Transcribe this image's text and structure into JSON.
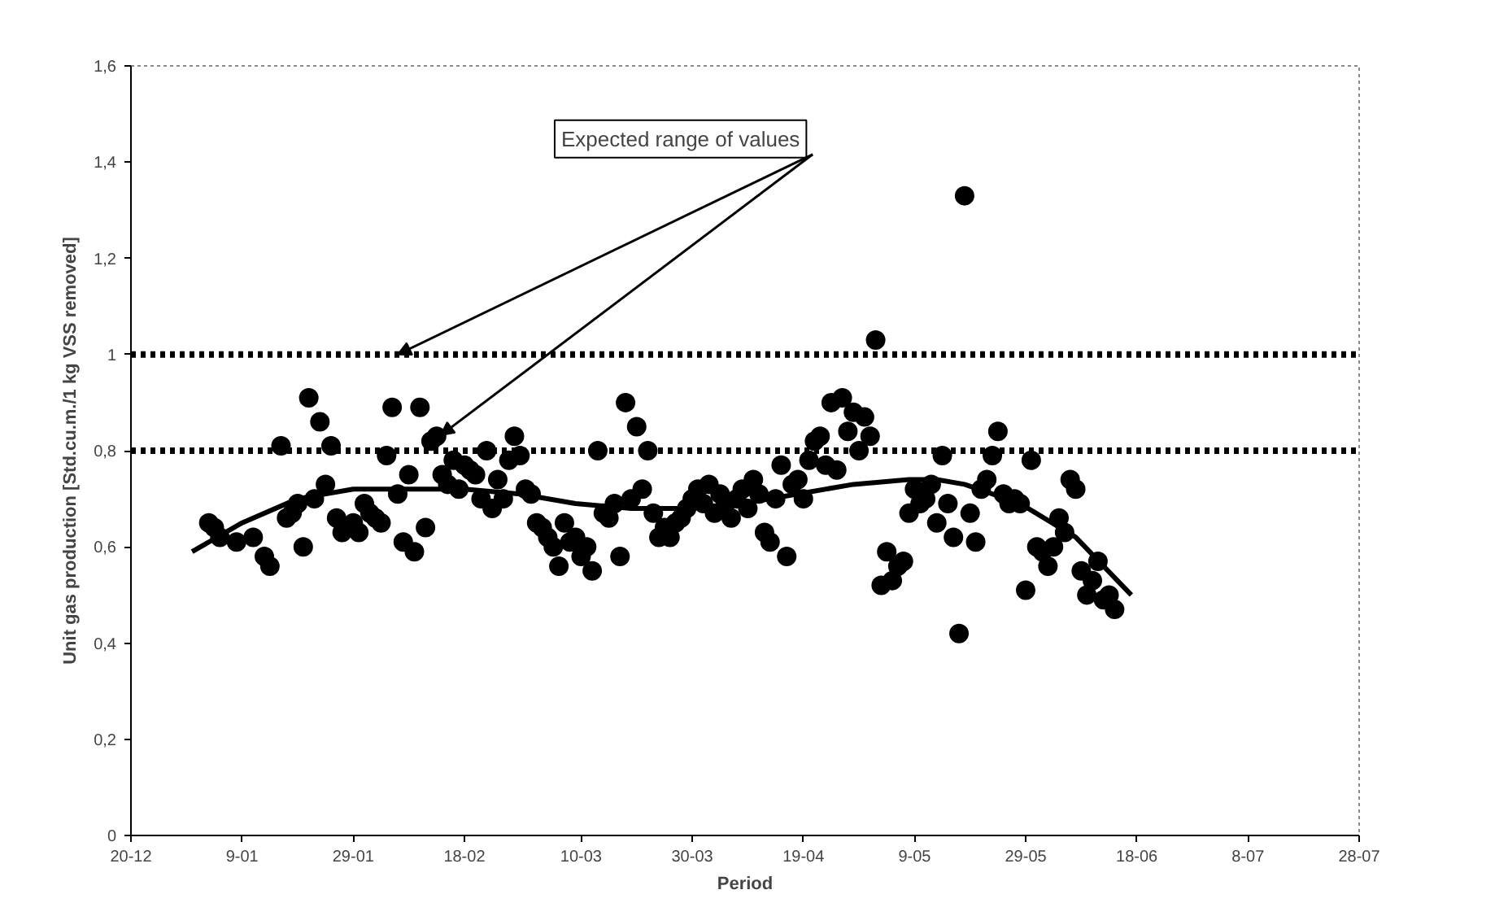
{
  "chart_data": {
    "type": "scatter",
    "xlabel": "Period",
    "ylabel": "Unit gas production [Std.cu.m./1 kg VSS removed]",
    "annotations": [
      {
        "text": "Expected range of values",
        "x": "2004-02-06",
        "y": 1.0
      }
    ],
    "xlim": [
      "2003-12-20",
      "2004-07-28"
    ],
    "xticks": [
      {
        "value": "2003-12-20",
        "label": "20-12"
      },
      {
        "value": "2004-01-09",
        "label": "9-01"
      },
      {
        "value": "2004-01-29",
        "label": "29-01"
      },
      {
        "value": "2004-02-18",
        "label": "18-02"
      },
      {
        "value": "2004-03-10",
        "label": "10-03"
      },
      {
        "value": "2004-03-30",
        "label": "30-03"
      },
      {
        "value": "2004-04-19",
        "label": "19-04"
      },
      {
        "value": "2004-05-09",
        "label": "9-05"
      },
      {
        "value": "2004-05-29",
        "label": "29-05"
      },
      {
        "value": "2004-06-18",
        "label": "18-06"
      },
      {
        "value": "2004-07-08",
        "label": "8-07"
      },
      {
        "value": "2004-07-28",
        "label": "28-07"
      }
    ],
    "ylim": [
      0,
      1.6
    ],
    "yticks": [
      0,
      {
        "value": 0.2,
        "label": "0,2"
      },
      {
        "value": 0.4,
        "label": "0,4"
      },
      {
        "value": 0.6,
        "label": "0,6"
      },
      {
        "value": 0.8,
        "label": "0,8"
      },
      1,
      {
        "value": 1.2,
        "label": "1,2"
      },
      {
        "value": 1.4,
        "label": "1,4"
      },
      {
        "value": 1.6,
        "label": "1,6"
      }
    ],
    "marker": "circle",
    "ref_lines": [
      {
        "axis": "y",
        "value": 1.0,
        "color": "#000000",
        "line_style": "dotted"
      },
      {
        "axis": "y",
        "value": 0.8,
        "color": "#000000",
        "line_style": "dotted"
      }
    ],
    "series": [
      {
        "color": "#000000",
        "x": [
          "2004-01-03",
          "2004-01-04",
          "2004-01-05",
          "2004-01-08",
          "2004-01-11",
          "2004-01-13",
          "2004-01-14",
          "2004-01-16",
          "2004-01-17",
          "2004-01-18",
          "2004-01-19",
          "2004-01-20",
          "2004-01-21",
          "2004-01-22",
          "2004-01-23",
          "2004-01-24",
          "2004-01-25",
          "2004-01-26",
          "2004-01-27",
          "2004-01-28",
          "2004-01-29",
          "2004-01-30",
          "2004-01-31",
          "2004-02-01",
          "2004-02-02",
          "2004-02-03",
          "2004-02-04",
          "2004-02-05",
          "2004-02-06",
          "2004-02-07",
          "2004-02-08",
          "2004-02-09",
          "2004-02-10",
          "2004-02-11",
          "2004-02-12",
          "2004-02-13",
          "2004-02-14",
          "2004-02-15",
          "2004-02-16",
          "2004-02-17",
          "2004-02-18",
          "2004-02-19",
          "2004-02-20",
          "2004-02-21",
          "2004-02-22",
          "2004-02-23",
          "2004-02-24",
          "2004-02-25",
          "2004-02-26",
          "2004-02-27",
          "2004-02-28",
          "2004-02-29",
          "2004-03-01",
          "2004-03-02",
          "2004-03-03",
          "2004-03-04",
          "2004-03-05",
          "2004-03-06",
          "2004-03-07",
          "2004-03-08",
          "2004-03-09",
          "2004-03-10",
          "2004-03-11",
          "2004-03-12",
          "2004-03-13",
          "2004-03-14",
          "2004-03-15",
          "2004-03-16",
          "2004-03-17",
          "2004-03-18",
          "2004-03-19",
          "2004-03-20",
          "2004-03-21",
          "2004-03-22",
          "2004-03-23",
          "2004-03-24",
          "2004-03-25",
          "2004-03-26",
          "2004-03-27",
          "2004-03-28",
          "2004-03-29",
          "2004-03-30",
          "2004-03-31",
          "2004-04-01",
          "2004-04-02",
          "2004-04-03",
          "2004-04-04",
          "2004-04-05",
          "2004-04-06",
          "2004-04-07",
          "2004-04-08",
          "2004-04-09",
          "2004-04-10",
          "2004-04-11",
          "2004-04-12",
          "2004-04-13",
          "2004-04-14",
          "2004-04-15",
          "2004-04-16",
          "2004-04-17",
          "2004-04-18",
          "2004-04-19",
          "2004-04-20",
          "2004-04-21",
          "2004-04-22",
          "2004-04-23",
          "2004-04-24",
          "2004-04-25",
          "2004-04-26",
          "2004-04-27",
          "2004-04-28",
          "2004-04-29",
          "2004-04-30",
          "2004-05-01",
          "2004-05-02",
          "2004-05-03",
          "2004-05-04",
          "2004-05-05",
          "2004-05-06",
          "2004-05-07",
          "2004-05-08",
          "2004-05-09",
          "2004-05-10",
          "2004-05-11",
          "2004-05-12",
          "2004-05-13",
          "2004-05-14",
          "2004-05-15",
          "2004-05-16",
          "2004-05-17",
          "2004-05-18",
          "2004-05-19",
          "2004-05-20",
          "2004-05-21",
          "2004-05-22",
          "2004-05-23",
          "2004-05-24",
          "2004-05-25",
          "2004-05-26",
          "2004-05-27",
          "2004-05-28",
          "2004-05-29",
          "2004-05-30",
          "2004-05-31",
          "2004-06-01",
          "2004-06-02",
          "2004-06-03",
          "2004-06-04",
          "2004-06-05",
          "2004-06-06",
          "2004-06-07",
          "2004-06-08",
          "2004-06-09",
          "2004-06-10",
          "2004-06-11",
          "2004-06-12",
          "2004-06-13",
          "2004-06-14"
        ],
        "values": [
          0.65,
          0.64,
          0.62,
          0.61,
          0.62,
          0.58,
          0.56,
          0.81,
          0.66,
          0.67,
          0.69,
          0.6,
          0.91,
          0.7,
          0.86,
          0.73,
          0.81,
          0.66,
          0.63,
          null,
          0.65,
          0.63,
          0.69,
          0.67,
          0.66,
          0.65,
          0.79,
          0.89,
          0.71,
          0.61,
          0.75,
          0.59,
          0.89,
          0.64,
          0.82,
          0.83,
          0.75,
          0.73,
          0.78,
          0.72,
          0.77,
          0.76,
          0.75,
          0.7,
          0.8,
          0.68,
          0.74,
          0.7,
          0.78,
          0.83,
          0.79,
          0.72,
          0.71,
          0.65,
          0.64,
          0.62,
          0.6,
          0.56,
          0.65,
          0.61,
          0.62,
          0.58,
          0.6,
          0.55,
          0.8,
          0.67,
          0.66,
          0.69,
          0.58,
          0.9,
          0.7,
          0.85,
          0.72,
          0.8,
          0.67,
          0.62,
          0.64,
          0.62,
          0.65,
          0.66,
          0.68,
          0.7,
          0.72,
          0.69,
          0.73,
          0.67,
          0.71,
          0.69,
          0.66,
          0.7,
          0.72,
          0.68,
          0.74,
          0.71,
          0.63,
          0.61,
          0.7,
          0.77,
          0.58,
          0.73,
          0.74,
          0.7,
          0.78,
          0.82,
          0.83,
          0.77,
          0.9,
          0.76,
          0.91,
          0.84,
          0.88,
          0.8,
          0.87,
          0.83,
          1.03,
          0.52,
          0.59,
          0.53,
          0.56,
          0.57,
          0.67,
          0.72,
          0.69,
          0.7,
          0.73,
          0.65,
          0.79,
          0.69,
          0.62,
          0.42,
          1.33,
          0.67,
          0.61,
          0.72,
          0.74,
          0.79,
          0.84,
          0.71,
          0.69,
          0.7,
          0.69,
          0.51,
          0.78,
          0.6,
          0.59,
          0.56,
          0.6,
          0.66,
          0.63,
          0.74,
          0.72,
          0.55,
          0.5,
          0.53,
          0.57,
          0.49,
          0.5,
          0.47
        ]
      },
      {
        "type": "line",
        "color": "#000000",
        "line_style": "solid",
        "marker": "none",
        "x": [
          "2003-12-31",
          "2004-01-09",
          "2004-01-19",
          "2004-01-29",
          "2004-02-08",
          "2004-02-18",
          "2004-02-28",
          "2004-03-09",
          "2004-03-19",
          "2004-03-29",
          "2004-04-08",
          "2004-04-18",
          "2004-04-28",
          "2004-05-08",
          "2004-05-13",
          "2004-05-18",
          "2004-05-28",
          "2004-06-07",
          "2004-06-12",
          "2004-06-17"
        ],
        "values": [
          0.59,
          0.65,
          0.7,
          0.72,
          0.72,
          0.72,
          0.71,
          0.69,
          0.68,
          0.68,
          0.69,
          0.71,
          0.73,
          0.74,
          0.74,
          0.73,
          0.69,
          0.62,
          0.56,
          0.5
        ]
      }
    ]
  }
}
